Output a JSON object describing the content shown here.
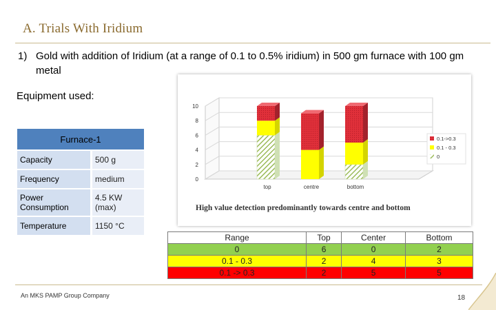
{
  "slide": {
    "title": "A. Trials With Iridium",
    "point_number": "1)",
    "point_text": "Gold with addition of Iridium (at a range of 0.1 to 0.5% iridium) in 500 gm furnace with 100 gm metal",
    "equipment_label": "Equipment used:",
    "footer": "An MKS PAMP Group Company",
    "page_number": "18"
  },
  "furnace_table": {
    "header": "Furnace-1",
    "rows": [
      {
        "label": "Capacity",
        "value": "500 g"
      },
      {
        "label": "Frequency",
        "value": "medium"
      },
      {
        "label": "Power Consumption",
        "value": "4.5 KW (max)"
      },
      {
        "label": "Temperature",
        "value": "1150 °C"
      }
    ]
  },
  "chart_data": {
    "type": "bar",
    "stacked": true,
    "three_d": true,
    "categories": [
      "top",
      "centre",
      "bottom"
    ],
    "series": [
      {
        "name": "0",
        "values": [
          6,
          0,
          2
        ],
        "color": "#9bbb59"
      },
      {
        "name": "0.1 - 0.3",
        "values": [
          2,
          4,
          3
        ],
        "color": "#ffff00"
      },
      {
        "name": "0.1->0.3",
        "values": [
          2,
          5,
          5
        ],
        "color": "#e0303a"
      }
    ],
    "y_ticks": [
      "0",
      "2",
      "4",
      "6",
      "8",
      "10"
    ],
    "ylim": [
      0,
      10
    ],
    "legend_position": "right",
    "caption": "High value detection predominantly towards centre and bottom"
  },
  "data_table": {
    "headers": [
      "Range",
      "Top",
      "Center",
      "Bottom"
    ],
    "rows": [
      {
        "cells": [
          "0",
          "6",
          "0",
          "2"
        ],
        "color": "#92d050"
      },
      {
        "cells": [
          "0.1 - 0.3",
          "2",
          "4",
          "3"
        ],
        "color": "#ffff00"
      },
      {
        "cells": [
          "0.1 -> 0.3",
          "2",
          "5",
          "5"
        ],
        "color": "#ff0000"
      }
    ]
  }
}
